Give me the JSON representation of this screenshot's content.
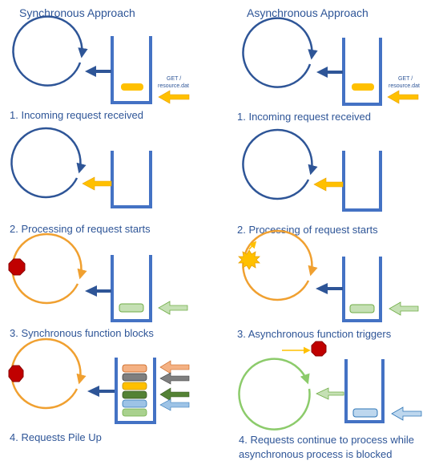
{
  "columns": [
    {
      "title": "Synchronous Approach",
      "steps": [
        {
          "caption": "1. Incoming request received",
          "request_label_line1": "GET /",
          "request_label_line2": "resource.dat"
        },
        {
          "caption": "2. Processing of request starts"
        },
        {
          "caption": "3. Synchronous function blocks"
        },
        {
          "caption": "4. Requests Pile Up"
        }
      ]
    },
    {
      "title": "Asynchronous Approach",
      "steps": [
        {
          "caption": "1. Incoming request received",
          "request_label_line1": "GET /",
          "request_label_line2": "resource.dat"
        },
        {
          "caption": "2. Processing of request starts"
        },
        {
          "caption": "3. Asynchronous function triggers"
        },
        {
          "caption_line1": "4. Requests continue to process while",
          "caption_line2": "asynchronous process is blocked"
        }
      ]
    }
  ],
  "colors": {
    "text": "#2E5597",
    "loop_idle": "#2E5597",
    "loop_busy": "#F0A030",
    "loop_async": "#8CCB6B",
    "queue": "#4472C4",
    "request": "#FFC000",
    "blocked": "#C00000",
    "trigger": "#FFC000",
    "pile": [
      "#A9D18E",
      "#9DC3E6",
      "#548235",
      "#FFC000",
      "#7F7F7F",
      "#F4B183"
    ]
  },
  "icons": {
    "stop": "red-octagon-stop-icon",
    "trigger": "sun-burst-icon"
  }
}
